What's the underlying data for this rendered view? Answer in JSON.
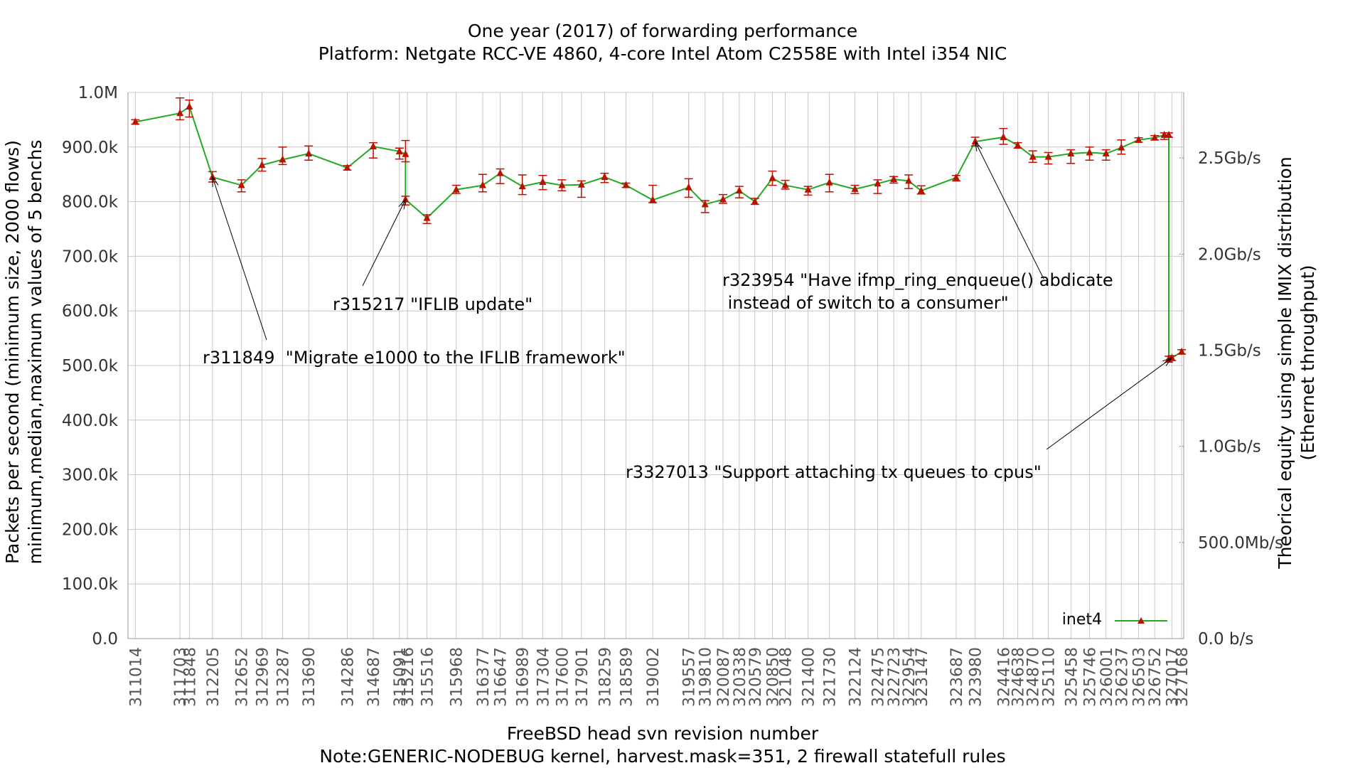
{
  "chart_data": {
    "type": "line",
    "title": "One year (2017) of forwarding performance",
    "subtitle": "Platform: Netgate RCC-VE 4860, 4-core Intel Atom C2558E with Intel i354 NIC",
    "xlabel": "FreeBSD head svn revision number",
    "xlabel_note": "Note:GENERIC-NODEBUG kernel, harvest.mask=351, 2 firewall statefull rules",
    "ylabel_line1": "Packets per second (minimum size, 2000 flows)",
    "ylabel_line2": "minimum,median,maximum values of 5 benchs",
    "y2label_line1": "Theorical equity using simple IMIX distribution",
    "y2label_line2": "(Ethernet throughput)",
    "ylim": [
      0,
      1000000
    ],
    "xlim": [
      310900,
      327200
    ],
    "y_ticks": [
      {
        "value": 0,
        "label": "0.0"
      },
      {
        "value": 100000,
        "label": "100.0k"
      },
      {
        "value": 200000,
        "label": "200.0k"
      },
      {
        "value": 300000,
        "label": "300.0k"
      },
      {
        "value": 400000,
        "label": "400.0k"
      },
      {
        "value": 500000,
        "label": "500.0k"
      },
      {
        "value": 600000,
        "label": "600.0k"
      },
      {
        "value": 700000,
        "label": "700.0k"
      },
      {
        "value": 800000,
        "label": "800.0k"
      },
      {
        "value": 900000,
        "label": "900.0k"
      },
      {
        "value": 1000000,
        "label": "1.0M"
      }
    ],
    "y2_ticks": [
      {
        "value": 0,
        "label": "0.0 b/s"
      },
      {
        "value": 176000,
        "label": "500.0Mb/s"
      },
      {
        "value": 352000,
        "label": "1.0Gb/s"
      },
      {
        "value": 528000,
        "label": "1.5Gb/s"
      },
      {
        "value": 704000,
        "label": "2.0Gb/s"
      },
      {
        "value": 880000,
        "label": "2.5Gb/s"
      }
    ],
    "x_ticks": [
      "311014",
      "311703",
      "311848",
      "312205",
      "312652",
      "312969",
      "313287",
      "313690",
      "314286",
      "314687",
      "315091",
      "315216",
      "315516",
      "315968",
      "316377",
      "316647",
      "316989",
      "317304",
      "317600",
      "317901",
      "318259",
      "318589",
      "319002",
      "319557",
      "319810",
      "320087",
      "320338",
      "320579",
      "320850",
      "321048",
      "321400",
      "321730",
      "322124",
      "322475",
      "322723",
      "322954",
      "323147",
      "323687",
      "323980",
      "324416",
      "324638",
      "324870",
      "325110",
      "325458",
      "325746",
      "326001",
      "326237",
      "326503",
      "326752",
      "327017",
      "327168"
    ],
    "grid": true,
    "legend_position": "bottom-right",
    "series": [
      {
        "name": "inet4",
        "color": "#22aa22",
        "marker_color": "#bb1100",
        "error_color": "#bb1100",
        "points": [
          {
            "x": 311014,
            "y": 946000,
            "min": 942000,
            "max": 950000
          },
          {
            "x": 311703,
            "y": 962000,
            "min": 950000,
            "max": 990000
          },
          {
            "x": 311848,
            "y": 974000,
            "min": 955000,
            "max": 986000
          },
          {
            "x": 312205,
            "y": 845000,
            "min": 836000,
            "max": 855000
          },
          {
            "x": 312652,
            "y": 830000,
            "min": 818000,
            "max": 840000
          },
          {
            "x": 312969,
            "y": 867000,
            "min": 856000,
            "max": 879000
          },
          {
            "x": 313287,
            "y": 877000,
            "min": 868000,
            "max": 900000
          },
          {
            "x": 313690,
            "y": 888000,
            "min": 876000,
            "max": 902000
          },
          {
            "x": 314286,
            "y": 862000,
            "min": 858000,
            "max": 866000
          },
          {
            "x": 314687,
            "y": 901000,
            "min": 880000,
            "max": 908000
          },
          {
            "x": 315091,
            "y": 892000,
            "min": 878000,
            "max": 898000
          },
          {
            "x": 315185,
            "y": 887000,
            "min": 873000,
            "max": 912000
          },
          {
            "x": 315185,
            "y": 804000,
            "min": 794000,
            "max": 810000
          },
          {
            "x": 315516,
            "y": 770000,
            "min": 760000,
            "max": 776000
          },
          {
            "x": 315968,
            "y": 822000,
            "min": 815000,
            "max": 830000
          },
          {
            "x": 316377,
            "y": 830000,
            "min": 818000,
            "max": 850000
          },
          {
            "x": 316647,
            "y": 852000,
            "min": 833000,
            "max": 860000
          },
          {
            "x": 316989,
            "y": 828000,
            "min": 813000,
            "max": 849000
          },
          {
            "x": 317304,
            "y": 836000,
            "min": 822000,
            "max": 848000
          },
          {
            "x": 317600,
            "y": 830000,
            "min": 820000,
            "max": 840000
          },
          {
            "x": 317901,
            "y": 831000,
            "min": 808000,
            "max": 838000
          },
          {
            "x": 318259,
            "y": 845000,
            "min": 835000,
            "max": 852000
          },
          {
            "x": 318589,
            "y": 830000,
            "min": 826000,
            "max": 834000
          },
          {
            "x": 319002,
            "y": 803000,
            "min": 798000,
            "max": 830000
          },
          {
            "x": 319557,
            "y": 826000,
            "min": 808000,
            "max": 842000
          },
          {
            "x": 319810,
            "y": 795000,
            "min": 780000,
            "max": 802000
          },
          {
            "x": 320087,
            "y": 804000,
            "min": 797000,
            "max": 813000
          },
          {
            "x": 320338,
            "y": 820000,
            "min": 807000,
            "max": 828000
          },
          {
            "x": 320579,
            "y": 800000,
            "min": 795000,
            "max": 806000
          },
          {
            "x": 320850,
            "y": 843000,
            "min": 830000,
            "max": 856000
          },
          {
            "x": 321048,
            "y": 830000,
            "min": 823000,
            "max": 839000
          },
          {
            "x": 321400,
            "y": 822000,
            "min": 812000,
            "max": 828000
          },
          {
            "x": 321730,
            "y": 835000,
            "min": 818000,
            "max": 850000
          },
          {
            "x": 322124,
            "y": 823000,
            "min": 815000,
            "max": 830000
          },
          {
            "x": 322475,
            "y": 833000,
            "min": 815000,
            "max": 840000
          },
          {
            "x": 322723,
            "y": 841000,
            "min": 834000,
            "max": 846000
          },
          {
            "x": 322954,
            "y": 838000,
            "min": 824000,
            "max": 849000
          },
          {
            "x": 323147,
            "y": 820000,
            "min": 814000,
            "max": 829000
          },
          {
            "x": 323687,
            "y": 844000,
            "min": 838000,
            "max": 848000
          },
          {
            "x": 323980,
            "y": 910000,
            "min": 902000,
            "max": 918000
          },
          {
            "x": 324416,
            "y": 918000,
            "min": 905000,
            "max": 934000
          },
          {
            "x": 324638,
            "y": 903000,
            "min": 898000,
            "max": 908000
          },
          {
            "x": 324870,
            "y": 882000,
            "min": 872000,
            "max": 893000
          },
          {
            "x": 325110,
            "y": 882000,
            "min": 869000,
            "max": 890000
          },
          {
            "x": 325458,
            "y": 888000,
            "min": 870000,
            "max": 895000
          },
          {
            "x": 325746,
            "y": 890000,
            "min": 876000,
            "max": 900000
          },
          {
            "x": 326001,
            "y": 888000,
            "min": 876000,
            "max": 895000
          },
          {
            "x": 326237,
            "y": 899000,
            "min": 887000,
            "max": 913000
          },
          {
            "x": 326503,
            "y": 913000,
            "min": 909000,
            "max": 917000
          },
          {
            "x": 326752,
            "y": 917000,
            "min": 913000,
            "max": 921000
          },
          {
            "x": 326900,
            "y": 922000,
            "min": 914000,
            "max": 926000
          },
          {
            "x": 326970,
            "y": 922000,
            "min": 918000,
            "max": 926000
          },
          {
            "x": 326970,
            "y": 512000,
            "min": 506000,
            "max": 517000
          },
          {
            "x": 327017,
            "y": 514000,
            "min": 509000,
            "max": 518000
          },
          {
            "x": 327168,
            "y": 525000,
            "min": 521000,
            "max": 529000
          }
        ]
      }
    ],
    "annotations": [
      {
        "lines": [
          "r311849  \"Migrate e1000 to the IFLIB framework\""
        ],
        "x": 312205,
        "y": 845000
      },
      {
        "lines": [
          "r315217 \"IFLIB update\""
        ],
        "x": 315185,
        "y": 804000
      },
      {
        "lines": [
          "r323954 \"Have ifmp_ring_enqueue() abdicate",
          " instead of switch to a consumer\""
        ],
        "x": 323980,
        "y": 910000
      },
      {
        "lines": [
          "r3327013 \"Support attaching tx queues to cpus\""
        ],
        "x": 327017,
        "y": 514000
      }
    ]
  }
}
